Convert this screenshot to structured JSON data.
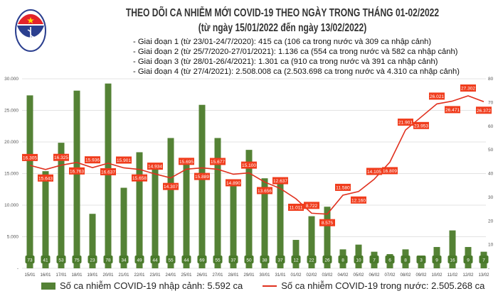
{
  "header": {
    "title": "THEO DÕI CA NHIỄM MỚI COVID-19 THEO NGÀY TRONG THÁNG 01-02/2022",
    "subtitle": "(từ ngày 15/01/2022 đến ngày 13/02/2022)",
    "notes": [
      "- Giai đoạn 1 (từ 23/01-24/7/2020): 415 ca (106 ca trong nước và 309 ca nhập cảnh)",
      "- Giai đoạn 2 (từ 25/7/2020-27/01/2021): 1.136 ca (554 ca trong nước và 582 ca nhập cảnh)",
      "- Giai đoạn 3 (từ 28/01-26/4/2021): 1.301 ca (910 ca trong nước và 391 ca nhập cảnh)",
      "- Giai đoạn 4 (từ 27/4/2021): 2.508.008 ca (2.503.698 ca trong nước và 4.310 ca nhập cảnh)"
    ],
    "logo_text": "BỘ Y TẾ"
  },
  "chart_data": {
    "type": "bar+line",
    "title": "THEO DÕI CA NHIỄM MỚI COVID-19 THEO NGÀY TRONG THÁNG 01-02/2022",
    "categories": [
      "15/01",
      "16/01",
      "17/01",
      "18/01",
      "19/01",
      "20/01",
      "21/01",
      "22/01",
      "23/01",
      "24/01",
      "25/01",
      "26/01",
      "27/01",
      "28/01",
      "29/01",
      "30/01",
      "31/01",
      "01/02",
      "02/02",
      "03/02",
      "04/02",
      "05/02",
      "06/02",
      "07/02",
      "08/02",
      "09/02",
      "10/02",
      "11/02",
      "12/02",
      "13/02"
    ],
    "series": [
      {
        "name": "Số ca nhiễm COVID-19 nhập cảnh: 5.592 ca",
        "type": "bar",
        "axis": "right",
        "color": "#548235",
        "values": [
          73,
          41,
          53,
          75,
          23,
          78,
          34,
          49,
          44,
          55,
          44,
          69,
          55,
          37,
          50,
          38,
          37,
          12,
          22,
          26,
          8,
          10,
          7,
          6,
          8,
          3,
          9,
          16,
          9,
          7
        ],
        "labels": [
          "73",
          "41",
          "53",
          "75",
          "23",
          "78",
          "34",
          "49",
          "44",
          "55",
          "44",
          "69",
          "55",
          "37",
          "50",
          "38",
          "37",
          "12",
          "22",
          "26",
          "8",
          "10",
          "7",
          "6",
          "8",
          "3",
          "9",
          "16",
          "9",
          "7"
        ]
      },
      {
        "name": "Số ca nhiễm COVID-19 trong nước: 2.505.268 ca",
        "type": "line",
        "axis": "left",
        "color": "#e0301e",
        "values": [
          16305,
          15643,
          16325,
          16763,
          15936,
          16637,
          15901,
          15658,
          14934,
          14307,
          15695,
          15889,
          15677,
          14890,
          15100,
          13656,
          12637,
          11011,
          8722,
          8575,
          11580,
          12160,
          14105,
          16809,
          21901,
          23953,
          26021,
          26471,
          27302,
          26372
        ],
        "labels": [
          "16.305",
          "15.643",
          "16.325",
          "16.763",
          "15.936",
          "16.637",
          "15.901",
          "15.658",
          "14.934",
          "14.307",
          "15.695",
          "15.889",
          "15.677",
          "14.890",
          "15.100",
          "13.656",
          "12.637",
          "11.011",
          "8.722",
          "8.575",
          "11.580",
          "12.160",
          "14.105",
          "16.809",
          "21.901",
          "23.953",
          "26.021",
          "26.471",
          "27.302",
          "26.372"
        ]
      }
    ],
    "left_axis": {
      "ylim": [
        0,
        30000
      ],
      "ticks": [
        "-",
        "5.000",
        "10.000",
        "15.000",
        "20.000",
        "25.000",
        "30.000"
      ]
    },
    "right_axis": {
      "ylim": [
        0,
        80
      ],
      "ticks": [
        "-",
        "10",
        "20",
        "30",
        "40",
        "50",
        "60",
        "70",
        "80"
      ]
    },
    "grid": true,
    "legend": "bottom"
  }
}
